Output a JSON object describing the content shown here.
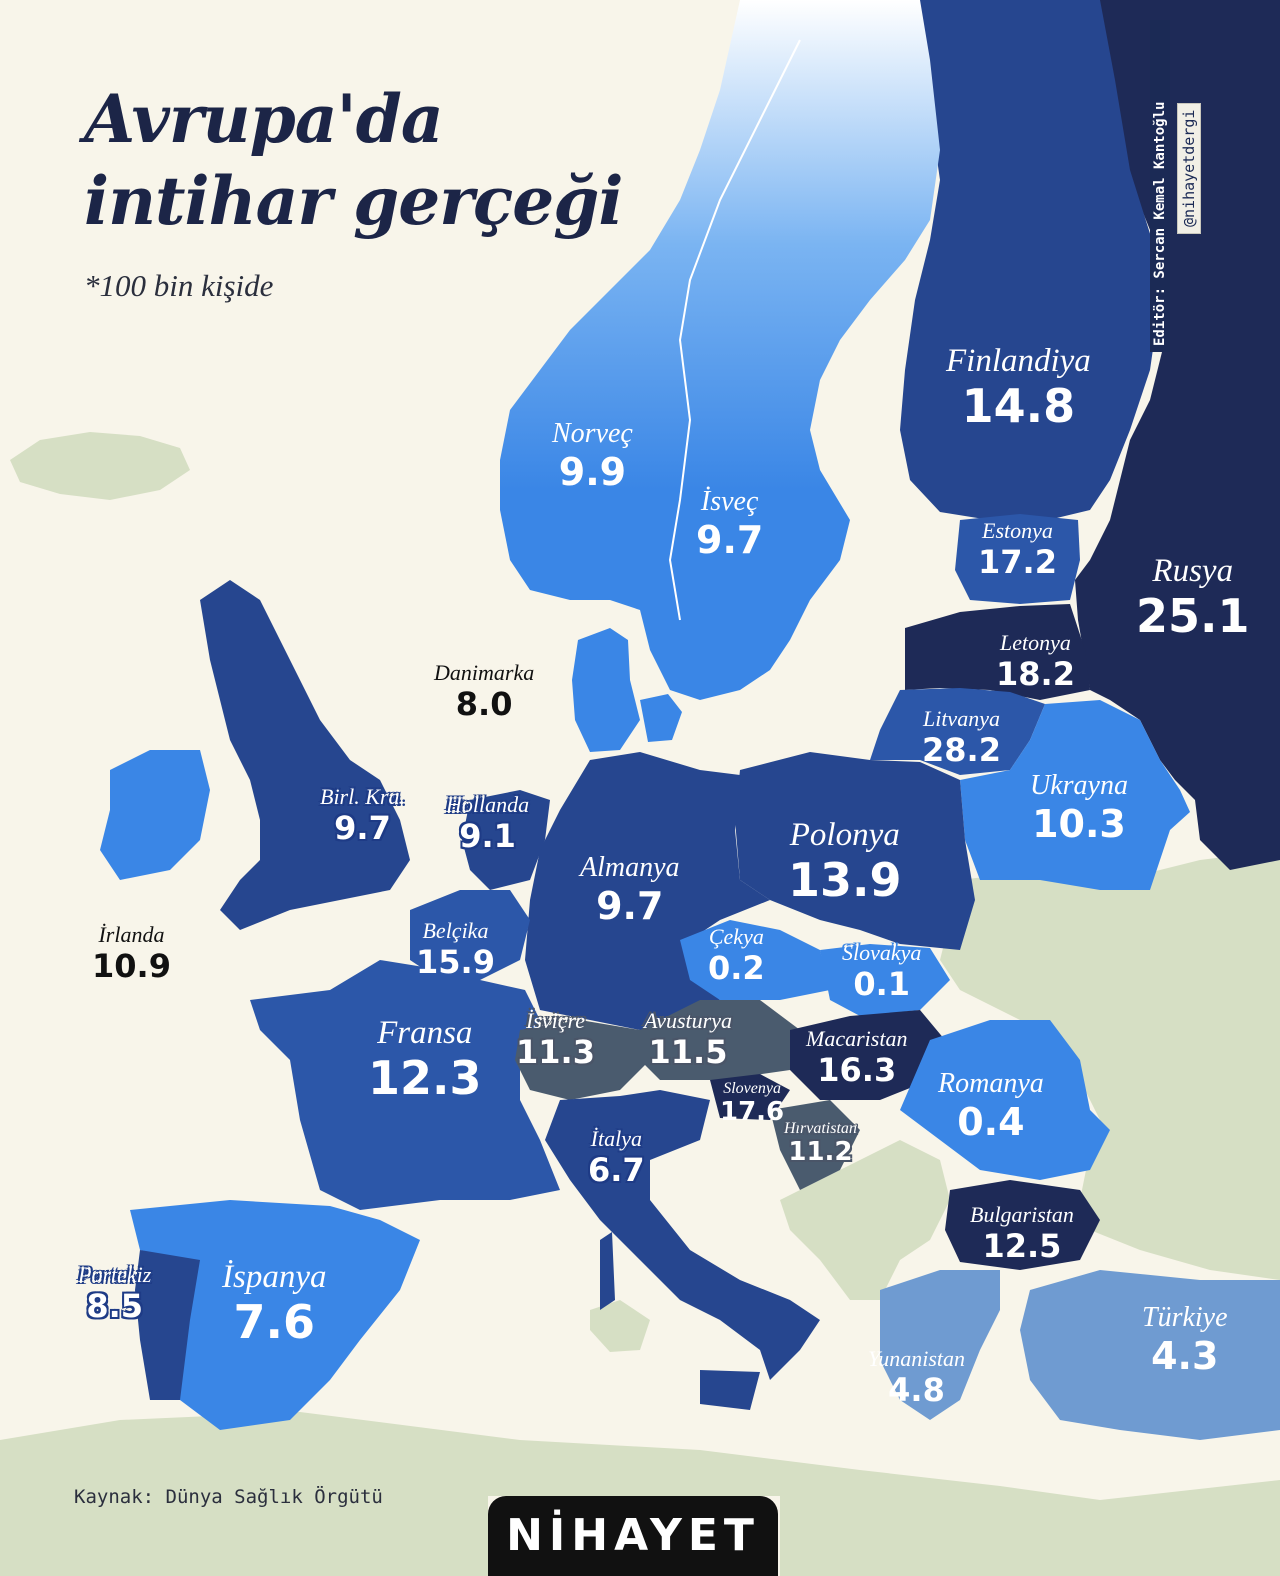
{
  "title_lines": [
    "Avrupa'da",
    "intihar gerçeği"
  ],
  "subtitle": "*100 bin kişide",
  "editor": "Editör: Sercan Kemal Kantoğlu",
  "handle": "@nihayetdergi",
  "source": "Kaynak: Dünya Sağlık Örgütü",
  "logo": "NİHAYET",
  "colors": {
    "background": "#f8f5ea",
    "sea": "#f8f5ea",
    "outside_land": "#d6dfc4",
    "light_blue": "#3a86e6",
    "mid_blue": "#2c57a9",
    "dark_blue": "#26468f",
    "navy": "#1e2a57",
    "gray_blue": "#4a5b6e",
    "pale_blue": "#6f9bd1"
  },
  "countries": [
    {
      "name": "Finlandiya",
      "value": "14.8"
    },
    {
      "name": "Norveç",
      "value": "9.9"
    },
    {
      "name": "İsveç",
      "value": "9.7"
    },
    {
      "name": "Estonya",
      "value": "17.2"
    },
    {
      "name": "Rusya",
      "value": "25.1"
    },
    {
      "name": "Letonya",
      "value": "18.2"
    },
    {
      "name": "Danimarka",
      "value": "8.0"
    },
    {
      "name": "Litvanya",
      "value": "28.2"
    },
    {
      "name": "Ukrayna",
      "value": "10.3"
    },
    {
      "name": "Birl. Kra.",
      "value": "9.7"
    },
    {
      "name": "Hollanda",
      "value": "9.1"
    },
    {
      "name": "Polonya",
      "value": "13.9"
    },
    {
      "name": "Almanya",
      "value": "9.7"
    },
    {
      "name": "İrlanda",
      "value": "10.9"
    },
    {
      "name": "Belçika",
      "value": "15.9"
    },
    {
      "name": "Çekya",
      "value": "0.2"
    },
    {
      "name": "Slovakya",
      "value": "0.1"
    },
    {
      "name": "Fransa",
      "value": "12.3"
    },
    {
      "name": "İsviçre",
      "value": "11.3"
    },
    {
      "name": "Avusturya",
      "value": "11.5"
    },
    {
      "name": "Macaristan",
      "value": "16.3"
    },
    {
      "name": "Romanya",
      "value": "0.4"
    },
    {
      "name": "Slovenya",
      "value": "17.6"
    },
    {
      "name": "Hırvatistan",
      "value": "11.2"
    },
    {
      "name": "İtalya",
      "value": "6.7"
    },
    {
      "name": "Bulgaristan",
      "value": "12.5"
    },
    {
      "name": "Portekiz",
      "value": "8.5"
    },
    {
      "name": "İspanya",
      "value": "7.6"
    },
    {
      "name": "Türkiye",
      "value": "4.3"
    },
    {
      "name": "Yunanistan",
      "value": "4.8"
    }
  ]
}
